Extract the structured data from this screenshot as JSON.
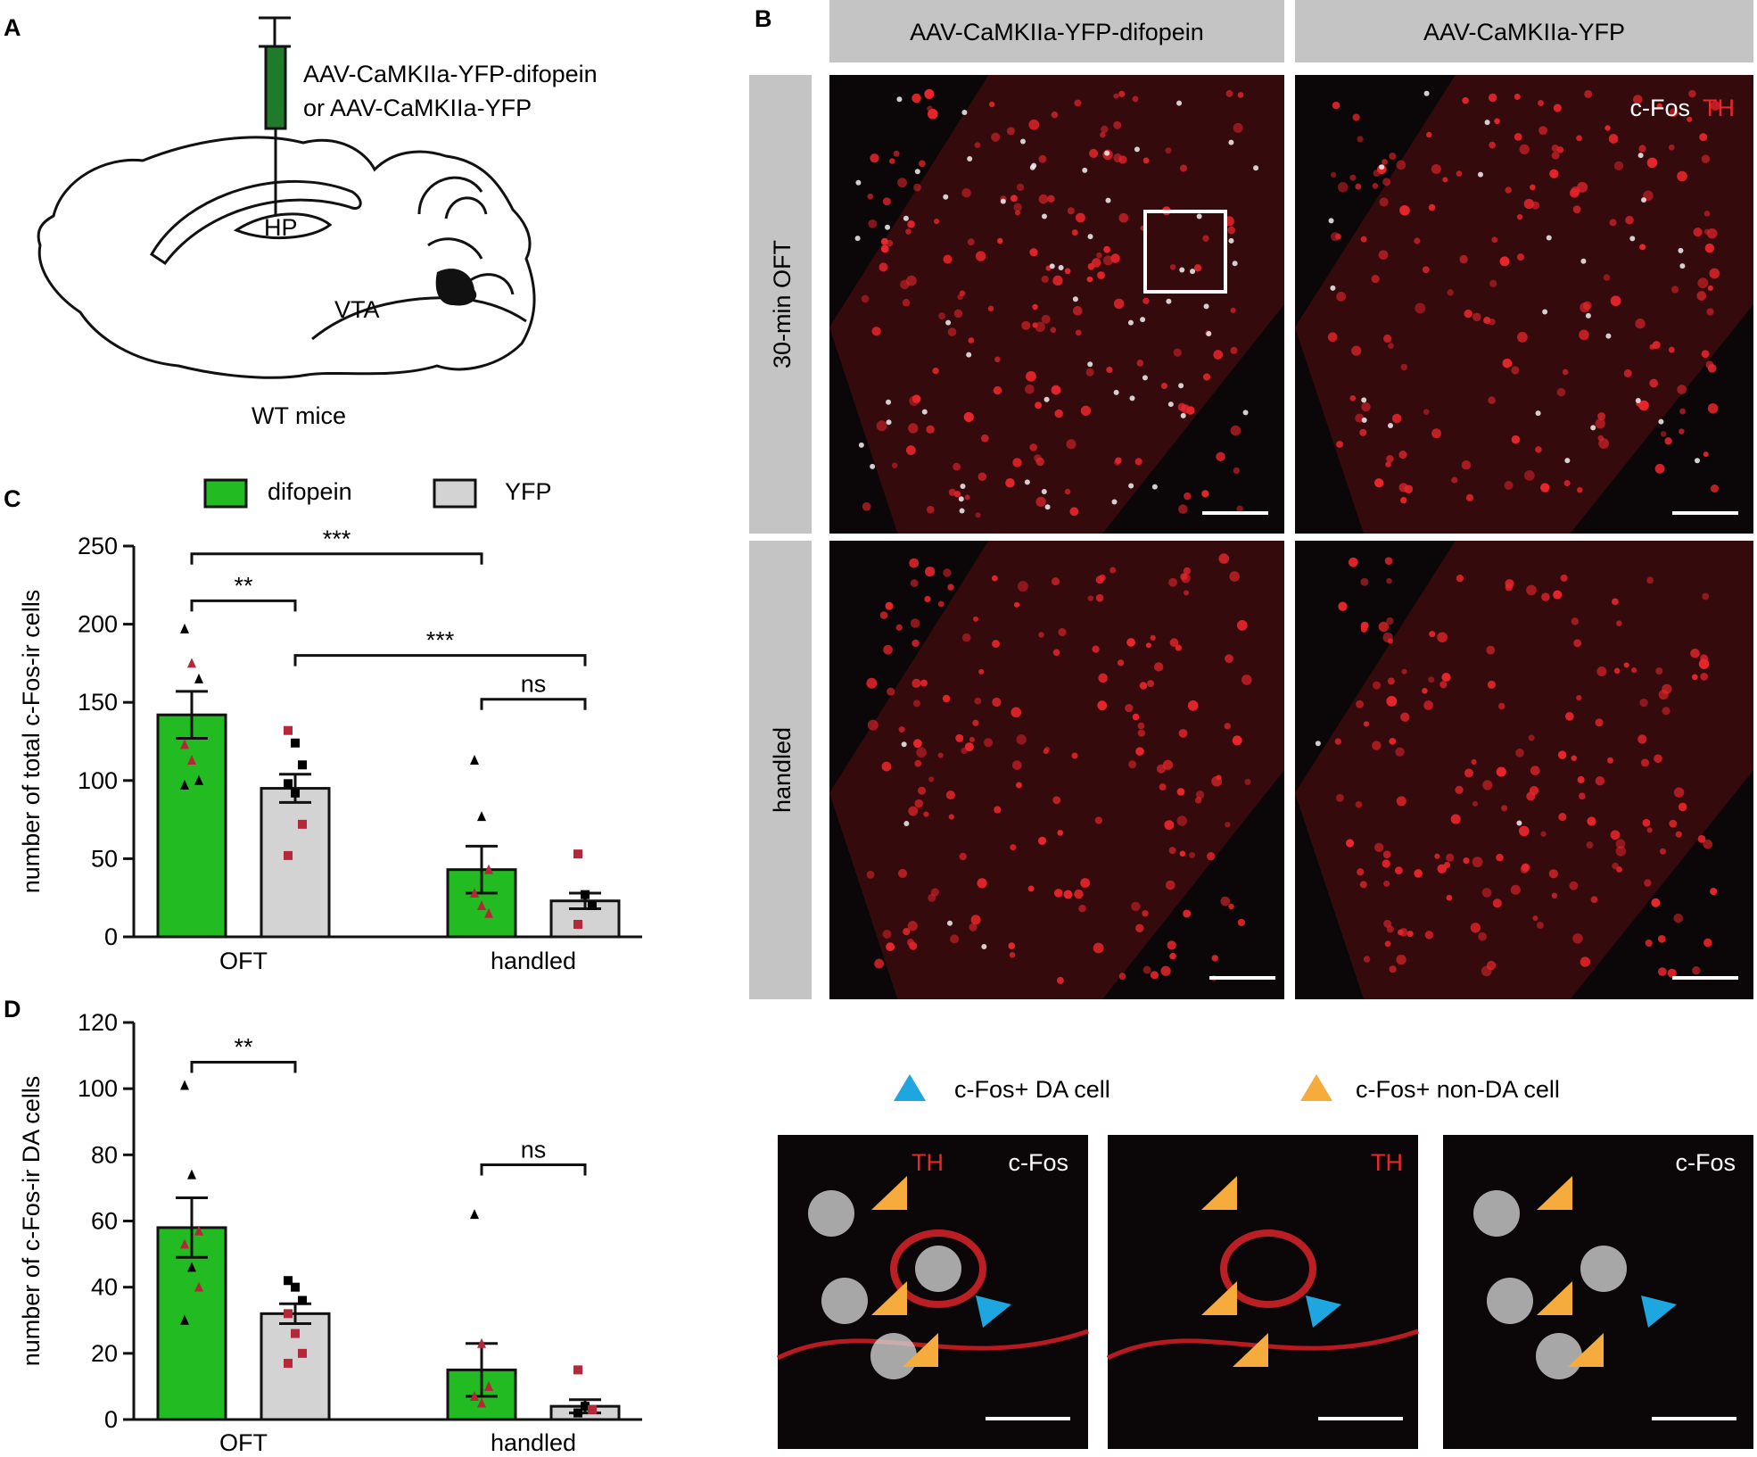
{
  "panel_labels": {
    "a": "A",
    "b": "B",
    "c": "C",
    "d": "D"
  },
  "panel_a": {
    "injection_line1": "AAV-CaMKIIa-YFP-difopein",
    "injection_line2": "or AAV-CaMKIIa-YFP",
    "region_hp": "HP",
    "region_vta": "VTA",
    "subject": "WT mice",
    "colors": {
      "syringe": "#1f7a2a",
      "brain_outline": "#111111",
      "vta_fill": "#111111"
    }
  },
  "panel_b": {
    "col_headers": [
      "AAV-CaMKIIa-YFP-difopein",
      "AAV-CaMKIIa-YFP"
    ],
    "row_headers": [
      "30-min OFT",
      "handled"
    ],
    "stain_cfos": "c-Fos",
    "stain_th": "TH",
    "legend_da": "c-Fos+ DA cell",
    "legend_nonda": "c-Fos+ non-DA cell",
    "zoom_labels": {
      "merge_th": "TH",
      "merge_cfos": "c-Fos",
      "th": "TH",
      "cfos": "c-Fos"
    },
    "colors": {
      "th": "#e8262b",
      "cfos": "#ffffff",
      "da_arrow": "#1ea6e0",
      "nonda_arrow": "#f6ac3c",
      "header_bg": "#c4c4c4"
    }
  },
  "legend": {
    "difopein": "difopein",
    "yfp": "YFP"
  },
  "colors": {
    "difopein": "#22bb22",
    "yfp": "#d3d3d3",
    "marker_black": "#000000",
    "marker_red": "#b5283a"
  },
  "chart_data": [
    {
      "type": "bar",
      "panel": "C",
      "ylabel": "number of total c-Fos-ir cells",
      "xlabel": "",
      "categories": [
        "OFT",
        "handled"
      ],
      "series": [
        {
          "name": "difopein",
          "values": [
            142,
            43
          ],
          "sem": [
            15,
            15
          ]
        },
        {
          "name": "YFP",
          "values": [
            95,
            23
          ],
          "sem": [
            9,
            5
          ]
        }
      ],
      "points": {
        "OFT_difopein": [
          {
            "v": 197,
            "m": "black"
          },
          {
            "v": 175,
            "m": "red"
          },
          {
            "v": 165,
            "m": "black"
          },
          {
            "v": 123,
            "m": "red"
          },
          {
            "v": 113,
            "m": "red"
          },
          {
            "v": 100,
            "m": "black"
          },
          {
            "v": 97,
            "m": "black"
          }
        ],
        "OFT_YFP": [
          {
            "v": 132,
            "m": "red"
          },
          {
            "v": 124,
            "m": "black"
          },
          {
            "v": 110,
            "m": "black"
          },
          {
            "v": 98,
            "m": "black"
          },
          {
            "v": 92,
            "m": "black"
          },
          {
            "v": 72,
            "m": "red"
          },
          {
            "v": 52,
            "m": "red"
          }
        ],
        "handled_difopein": [
          {
            "v": 113,
            "m": "black"
          },
          {
            "v": 77,
            "m": "black"
          },
          {
            "v": 43,
            "m": "red"
          },
          {
            "v": 28,
            "m": "red"
          },
          {
            "v": 20,
            "m": "red"
          },
          {
            "v": 15,
            "m": "red"
          }
        ],
        "handled_YFP": [
          {
            "v": 53,
            "m": "red"
          },
          {
            "v": 27,
            "m": "black"
          },
          {
            "v": 20,
            "m": "black"
          },
          {
            "v": 8,
            "m": "red"
          }
        ]
      },
      "ylim": [
        0,
        250
      ],
      "yticks": [
        "0",
        "50",
        "100",
        "150",
        "200",
        "250"
      ],
      "significance": [
        {
          "label": "**",
          "from": "OFT_difopein",
          "to": "OFT_YFP",
          "y": 215
        },
        {
          "label": "***",
          "from": "OFT_difopein",
          "to": "handled_difopein",
          "y": 245
        },
        {
          "label": "***",
          "from": "OFT_YFP",
          "to": "handled_YFP",
          "y": 180
        },
        {
          "label": "ns",
          "from": "handled_difopein",
          "to": "handled_YFP",
          "y": 152
        }
      ]
    },
    {
      "type": "bar",
      "panel": "D",
      "ylabel": "number of c-Fos-ir DA cells",
      "xlabel": "",
      "categories": [
        "OFT",
        "handled"
      ],
      "series": [
        {
          "name": "difopein",
          "values": [
            58,
            15
          ],
          "sem": [
            9,
            8
          ]
        },
        {
          "name": "YFP",
          "values": [
            32,
            4
          ],
          "sem": [
            3,
            2
          ]
        }
      ],
      "points": {
        "OFT_difopein": [
          {
            "v": 101,
            "m": "black"
          },
          {
            "v": 74,
            "m": "black"
          },
          {
            "v": 57,
            "m": "red"
          },
          {
            "v": 53,
            "m": "red"
          },
          {
            "v": 46,
            "m": "black"
          },
          {
            "v": 40,
            "m": "red"
          },
          {
            "v": 30,
            "m": "black"
          }
        ],
        "OFT_YFP": [
          {
            "v": 42,
            "m": "black"
          },
          {
            "v": 40,
            "m": "black"
          },
          {
            "v": 36,
            "m": "black"
          },
          {
            "v": 32,
            "m": "red"
          },
          {
            "v": 26,
            "m": "red"
          },
          {
            "v": 20,
            "m": "red"
          },
          {
            "v": 17,
            "m": "red"
          }
        ],
        "handled_difopein": [
          {
            "v": 62,
            "m": "black"
          },
          {
            "v": 23,
            "m": "red"
          },
          {
            "v": 10,
            "m": "red"
          },
          {
            "v": 7,
            "m": "red"
          },
          {
            "v": 5,
            "m": "red"
          }
        ],
        "handled_YFP": [
          {
            "v": 15,
            "m": "red"
          },
          {
            "v": 4,
            "m": "black"
          },
          {
            "v": 3,
            "m": "red"
          },
          {
            "v": 2,
            "m": "black"
          }
        ]
      },
      "ylim": [
        0,
        120
      ],
      "yticks": [
        "0",
        "20",
        "40",
        "60",
        "80",
        "100",
        "120"
      ],
      "significance": [
        {
          "label": "**",
          "from": "OFT_difopein",
          "to": "OFT_YFP",
          "y": 108
        },
        {
          "label": "ns",
          "from": "handled_difopein",
          "to": "handled_YFP",
          "y": 77
        }
      ]
    }
  ]
}
